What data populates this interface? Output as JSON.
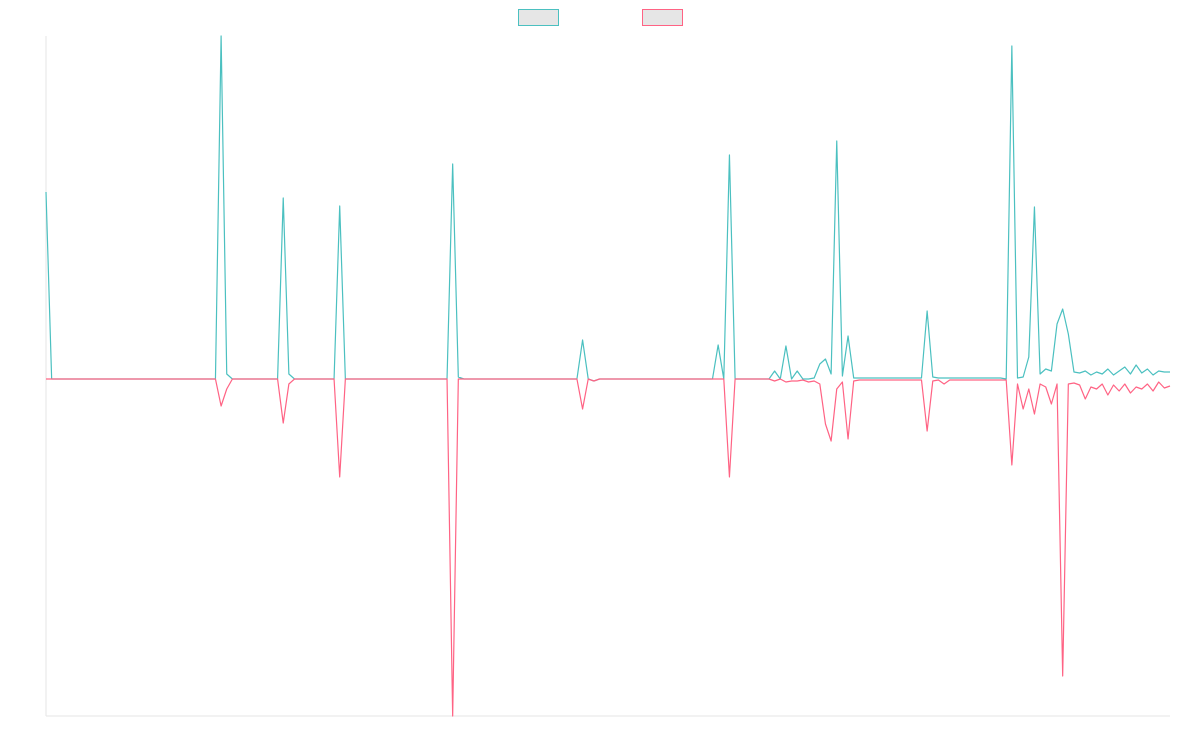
{
  "chart_data": {
    "type": "line",
    "series": [
      {
        "color": "#4bc0c0",
        "values": [
          1.87,
          0,
          0,
          0,
          0,
          0,
          0,
          0,
          0,
          0,
          0,
          0,
          0,
          0,
          0,
          0,
          0,
          0,
          0,
          0,
          0,
          0,
          0,
          0,
          0,
          0,
          0,
          0,
          0,
          0,
          0,
          3.43,
          0.05,
          0,
          0,
          0,
          0,
          0,
          0,
          0,
          0,
          0,
          1.81,
          0.05,
          0,
          0,
          0,
          0,
          0,
          0,
          0,
          0,
          1.73,
          0,
          0,
          0,
          0,
          0,
          0,
          0,
          0,
          0,
          0,
          0,
          0,
          0,
          0,
          0,
          0,
          0,
          0,
          0,
          2.15,
          0.02,
          0,
          0,
          0,
          0,
          0,
          0,
          0,
          0,
          0,
          0,
          0,
          0,
          0,
          0,
          0,
          0,
          0,
          0,
          0,
          0,
          0,
          0.39,
          0,
          -0.02,
          0,
          0,
          0,
          0,
          0,
          0,
          0,
          0,
          0,
          0,
          0,
          0,
          0,
          0,
          0,
          0,
          0,
          0,
          0,
          0,
          0,
          0.34,
          0,
          2.24,
          0,
          0,
          0,
          0,
          0,
          0,
          0,
          0.08,
          0,
          0.33,
          0,
          0.08,
          0,
          0,
          0.01,
          0.15,
          0.2,
          0.05,
          2.38,
          0.03,
          0.43,
          0.01,
          0.01,
          0.01,
          0.01,
          0.01,
          0.01,
          0.01,
          0.01,
          0.01,
          0.01,
          0.01,
          0.01,
          0.01,
          0.68,
          0.02,
          0.01,
          0.01,
          0.01,
          0.01,
          0.01,
          0.01,
          0.01,
          0.01,
          0.01,
          0.01,
          0.01,
          0.01,
          0,
          3.33,
          0.01,
          0.02,
          0.22,
          1.72,
          0.05,
          0.1,
          0.08,
          0.55,
          0.7,
          0.45,
          0.07,
          0.06,
          0.08,
          0.04,
          0.07,
          0.05,
          0.1,
          0.04,
          0.08,
          0.12,
          0.05,
          0.14,
          0.06,
          0.1,
          0.04,
          0.08,
          0.07,
          0.07
        ]
      },
      {
        "color": "#ff6384",
        "values": [
          0,
          0,
          0,
          0,
          0,
          0,
          0,
          0,
          0,
          0,
          0,
          0,
          0,
          0,
          0,
          0,
          0,
          0,
          0,
          0,
          0,
          0,
          0,
          0,
          0,
          0,
          0,
          0,
          0,
          0,
          0,
          -0.27,
          -0.1,
          0,
          0,
          0,
          0,
          0,
          0,
          0,
          0,
          0,
          -0.44,
          -0.05,
          0,
          0,
          0,
          0,
          0,
          0,
          0,
          0,
          -0.98,
          0,
          0,
          0,
          0,
          0,
          0,
          0,
          0,
          0,
          0,
          0,
          0,
          0,
          0,
          0,
          0,
          0,
          0,
          0,
          -3.37,
          0,
          0,
          0,
          0,
          0,
          0,
          0,
          0,
          0,
          0,
          0,
          0,
          0,
          0,
          0,
          0,
          0,
          0,
          0,
          0,
          0,
          0,
          -0.3,
          0,
          -0.02,
          0,
          0,
          0,
          0,
          0,
          0,
          0,
          0,
          0,
          0,
          0,
          0,
          0,
          0,
          0,
          0,
          0,
          0,
          0,
          0,
          0,
          0,
          0,
          -0.98,
          0,
          0,
          0,
          0,
          0,
          0,
          0,
          -0.02,
          0,
          -0.03,
          -0.02,
          -0.02,
          -0.01,
          -0.03,
          -0.02,
          -0.05,
          -0.45,
          -0.62,
          -0.1,
          -0.03,
          -0.6,
          -0.02,
          -0.01,
          -0.01,
          -0.01,
          -0.01,
          -0.01,
          -0.01,
          -0.01,
          -0.01,
          -0.01,
          -0.01,
          -0.01,
          -0.01,
          -0.52,
          -0.02,
          -0.01,
          -0.05,
          -0.01,
          -0.01,
          -0.01,
          -0.01,
          -0.01,
          -0.01,
          -0.01,
          -0.01,
          -0.01,
          -0.01,
          -0.01,
          -0.86,
          -0.05,
          -0.3,
          -0.1,
          -0.35,
          -0.05,
          -0.08,
          -0.25,
          -0.05,
          -2.97,
          -0.05,
          -0.04,
          -0.06,
          -0.2,
          -0.08,
          -0.1,
          -0.05,
          -0.16,
          -0.06,
          -0.12,
          -0.05,
          -0.14,
          -0.08,
          -0.1,
          -0.05,
          -0.12,
          -0.03,
          -0.09,
          -0.07
        ]
      }
    ],
    "ylim": [
      -3.37,
      3.43
    ],
    "legend": "top"
  }
}
